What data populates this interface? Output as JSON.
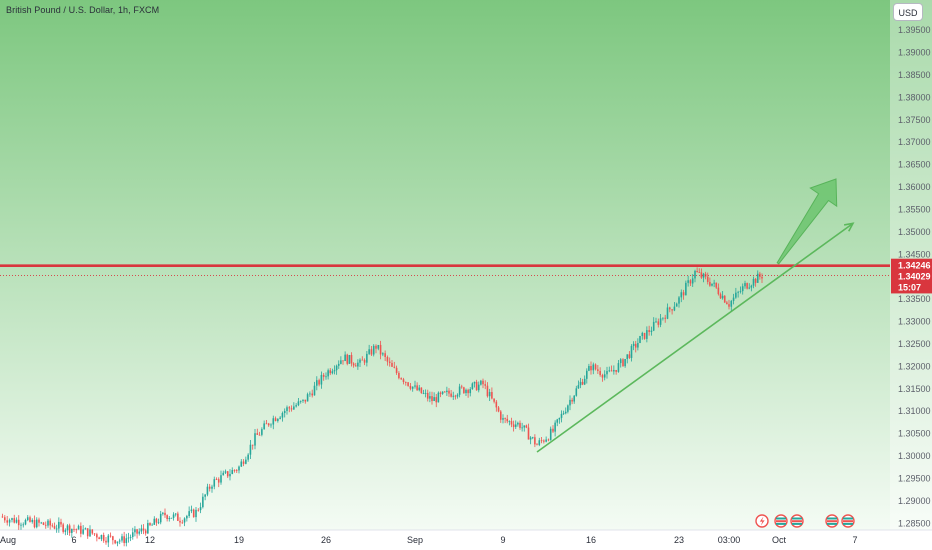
{
  "header": {
    "title": "British Pound / U.S. Dollar, 1h, FXCM",
    "currency_button": "USD"
  },
  "colors": {
    "bull": "#26a69a",
    "bear": "#ef5350",
    "resistance": "#d9363e",
    "trendline": "#5cb85c",
    "background_top": "#7dc77f",
    "background_bottom": "#f4fbf4"
  },
  "chart_data": {
    "type": "candlestick",
    "symbol": "GBPUSD",
    "interval": "1h",
    "ylim": [
      1.2835,
      1.3995
    ],
    "y_ticks": [
      "1.39500",
      "1.39000",
      "1.38500",
      "1.38000",
      "1.37500",
      "1.37000",
      "1.36500",
      "1.36000",
      "1.35500",
      "1.35000",
      "1.34500",
      "1.33500",
      "1.33000",
      "1.32500",
      "1.32000",
      "1.31500",
      "1.31000",
      "1.30500",
      "1.30000",
      "1.29500",
      "1.29000",
      "1.28500"
    ],
    "x_ticks": [
      "Aug",
      "6",
      "12",
      "19",
      "26",
      "Sep",
      "9",
      "16",
      "23",
      "03:00",
      "Oct",
      "7"
    ],
    "price_series": [
      {
        "date": "Aug 1",
        "close": 1.2865
      },
      {
        "date": "Aug 2",
        "close": 1.2858
      },
      {
        "date": "Aug 5",
        "close": 1.2846
      },
      {
        "date": "Aug 6",
        "close": 1.2838
      },
      {
        "date": "Aug 7",
        "close": 1.2829
      },
      {
        "date": "Aug 8",
        "close": 1.2818
      },
      {
        "date": "Aug 9",
        "close": 1.2812
      },
      {
        "date": "Aug 12",
        "close": 1.2842
      },
      {
        "date": "Aug 13",
        "close": 1.287
      },
      {
        "date": "Aug 14",
        "close": 1.286
      },
      {
        "date": "Aug 15",
        "close": 1.2875
      },
      {
        "date": "Aug 16",
        "close": 1.294
      },
      {
        "date": "Aug 19",
        "close": 1.2975
      },
      {
        "date": "Aug 20",
        "close": 1.304
      },
      {
        "date": "Aug 21",
        "close": 1.308
      },
      {
        "date": "Aug 22",
        "close": 1.3105
      },
      {
        "date": "Aug 23",
        "close": 1.312
      },
      {
        "date": "Aug 26",
        "close": 1.3185
      },
      {
        "date": "Aug 27",
        "close": 1.322
      },
      {
        "date": "Aug 28",
        "close": 1.3205
      },
      {
        "date": "Aug 29",
        "close": 1.3245
      },
      {
        "date": "Aug 30",
        "close": 1.3195
      },
      {
        "date": "Sep 2",
        "close": 1.315
      },
      {
        "date": "Sep 3",
        "close": 1.3125
      },
      {
        "date": "Sep 4",
        "close": 1.314
      },
      {
        "date": "Sep 5",
        "close": 1.315
      },
      {
        "date": "Sep 6",
        "close": 1.316
      },
      {
        "date": "Sep 9",
        "close": 1.308
      },
      {
        "date": "Sep 10",
        "close": 1.307
      },
      {
        "date": "Sep 11",
        "close": 1.3025
      },
      {
        "date": "Sep 12",
        "close": 1.3055
      },
      {
        "date": "Sep 13",
        "close": 1.3125
      },
      {
        "date": "Sep 16",
        "close": 1.32
      },
      {
        "date": "Sep 17",
        "close": 1.318
      },
      {
        "date": "Sep 18",
        "close": 1.321
      },
      {
        "date": "Sep 19",
        "close": 1.326
      },
      {
        "date": "Sep 20",
        "close": 1.3295
      },
      {
        "date": "Sep 23",
        "close": 1.335
      },
      {
        "date": "Sep 24",
        "close": 1.341
      },
      {
        "date": "Sep 25",
        "close": 1.3385
      },
      {
        "date": "Sep 26",
        "close": 1.334
      },
      {
        "date": "Sep 27",
        "close": 1.338
      },
      {
        "date": "Sep 30",
        "close": 1.3403
      }
    ],
    "annotations": {
      "resistance_level": 1.34246,
      "last_price": 1.34029,
      "countdown": "15:07",
      "last_price_label": "1.34029",
      "resistance_label": "1.34246",
      "trendline": {
        "from": {
          "date": "Sep 11",
          "price": 1.3009
        },
        "to": {
          "date": "Oct 8",
          "price": 1.3519
        }
      },
      "arrow": {
        "from": {
          "date": "Oct 1",
          "price": 1.343
        },
        "to": {
          "date": "Oct 4",
          "price": 1.3618
        }
      }
    },
    "grid": false,
    "legend": "none"
  }
}
